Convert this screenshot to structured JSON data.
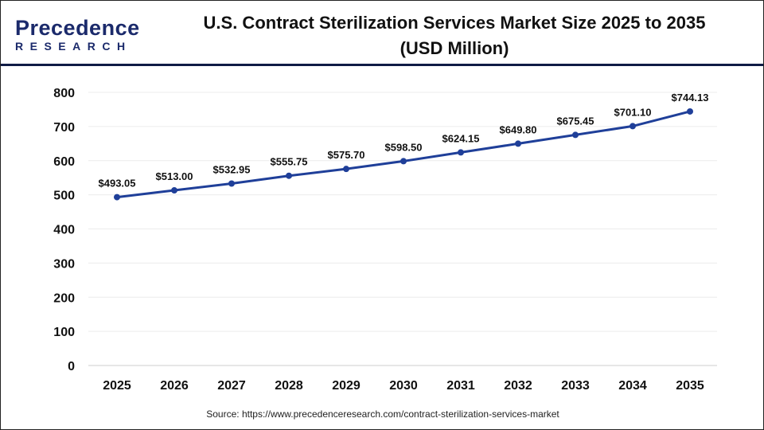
{
  "logo": {
    "line1": "Precedence",
    "line2": "RESEARCH"
  },
  "title_line1": "U.S. Contract Sterilization Services Market Size 2025 to 2035",
  "title_line2": "(USD Million)",
  "source": "Source: https://www.precedenceresearch.com/contract-sterilization-services-market",
  "chart_data": {
    "type": "line",
    "title": "U.S. Contract Sterilization Services Market Size 2025 to 2035 (USD Million)",
    "categories": [
      "2025",
      "2026",
      "2027",
      "2028",
      "2029",
      "2030",
      "2031",
      "2032",
      "2033",
      "2034",
      "2035"
    ],
    "values": [
      493.05,
      513.0,
      532.95,
      555.75,
      575.7,
      598.5,
      624.15,
      649.8,
      675.45,
      701.1,
      744.13
    ],
    "data_labels": [
      "$493.05",
      "$513.00",
      "$532.95",
      "$555.75",
      "$575.70",
      "$598.50",
      "$624.15",
      "$649.80",
      "$675.45",
      "$701.10",
      "$744.13"
    ],
    "ylim": [
      0,
      800
    ],
    "yticks": [
      0,
      100,
      200,
      300,
      400,
      500,
      600,
      700,
      800
    ],
    "grid": true,
    "line_color": "#1f3f99"
  }
}
